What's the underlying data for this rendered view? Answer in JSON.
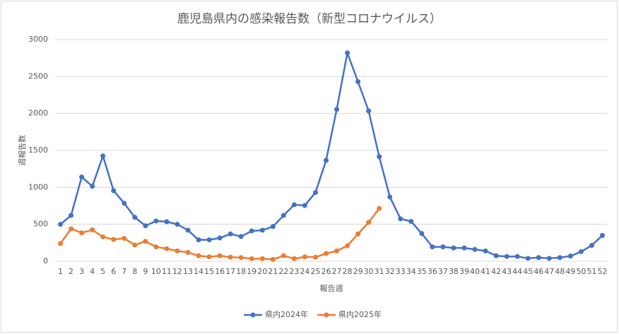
{
  "chart_data": {
    "type": "line",
    "title": "鹿児島県内の感染報告数（新型コロナウイルス）",
    "x_label": "報告週",
    "y_label": "週報告数",
    "categories": [
      "1",
      "2",
      "3",
      "4",
      "5",
      "6",
      "7",
      "8",
      "9",
      "10",
      "11",
      "12",
      "13",
      "14",
      "15",
      "16",
      "17",
      "18",
      "19",
      "20",
      "21",
      "22",
      "23",
      "24",
      "25",
      "26",
      "27",
      "28",
      "29",
      "30",
      "31",
      "32",
      "33",
      "34",
      "35",
      "36",
      "37",
      "38",
      "39",
      "40",
      "41",
      "42",
      "43",
      "44",
      "45",
      "46",
      "47",
      "48",
      "49",
      "50",
      "51",
      "52"
    ],
    "series": [
      {
        "name": "県内2024年",
        "color": "#4472c4",
        "values": [
          500,
          620,
          1140,
          1015,
          1425,
          955,
          785,
          595,
          480,
          545,
          535,
          500,
          420,
          290,
          290,
          315,
          370,
          335,
          410,
          420,
          470,
          620,
          765,
          755,
          930,
          1365,
          2055,
          2820,
          2430,
          2035,
          1415,
          870,
          575,
          540,
          375,
          195,
          195,
          180,
          180,
          160,
          140,
          75,
          65,
          65,
          40,
          50,
          40,
          50,
          70,
          130,
          215,
          350
        ]
      },
      {
        "name": "県内2025年",
        "color": "#ed7d31",
        "values": [
          240,
          440,
          385,
          425,
          330,
          295,
          310,
          220,
          270,
          195,
          170,
          140,
          120,
          75,
          60,
          75,
          55,
          50,
          35,
          35,
          25,
          75,
          35,
          60,
          55,
          105,
          140,
          210,
          370,
          525,
          715,
          null,
          null,
          null,
          null,
          null,
          null,
          null,
          null,
          null,
          null,
          null,
          null,
          null,
          null,
          null,
          null,
          null,
          null,
          null,
          null,
          null
        ]
      }
    ],
    "ylim": [
      0,
      3000
    ],
    "yticks": [
      0,
      500,
      1000,
      1500,
      2000,
      2500,
      3000
    ],
    "grid": true,
    "legend": "bottom"
  }
}
